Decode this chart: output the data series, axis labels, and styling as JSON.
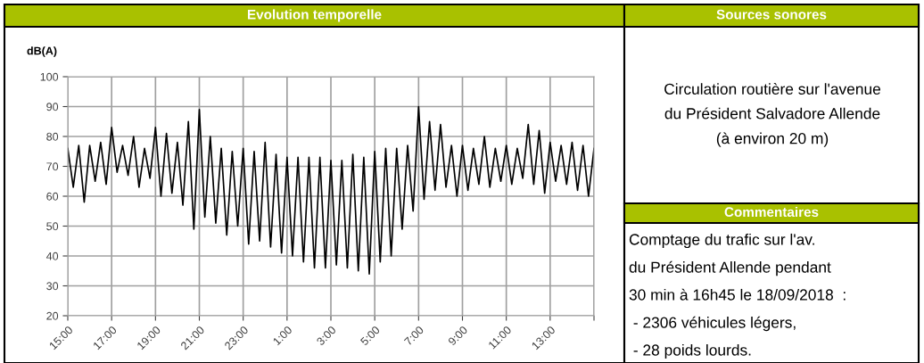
{
  "chart_data": [
    {
      "type": "line",
      "title": "Evolution temporelle",
      "ylabel": "dB(A)",
      "x": [
        "2018-09-18T15:00",
        "2018-09-18T15:15",
        "2018-09-18T15:30",
        "2018-09-18T15:45",
        "2018-09-18T16:00",
        "2018-09-18T16:15",
        "2018-09-18T16:30",
        "2018-09-18T16:45",
        "2018-09-18T17:00",
        "2018-09-18T17:15",
        "2018-09-18T17:30",
        "2018-09-18T17:45",
        "2018-09-18T18:00",
        "2018-09-18T18:15",
        "2018-09-18T18:30",
        "2018-09-18T18:45",
        "2018-09-18T19:00",
        "2018-09-18T19:15",
        "2018-09-18T19:30",
        "2018-09-18T19:45",
        "2018-09-18T20:00",
        "2018-09-18T20:15",
        "2018-09-18T20:30",
        "2018-09-18T20:45",
        "2018-09-18T21:00",
        "2018-09-18T21:15",
        "2018-09-18T21:30",
        "2018-09-18T21:45",
        "2018-09-18T22:00",
        "2018-09-18T22:15",
        "2018-09-18T22:30",
        "2018-09-18T22:45",
        "2018-09-18T23:00",
        "2018-09-18T23:15",
        "2018-09-18T23:30",
        "2018-09-18T23:45",
        "2018-09-19T00:00",
        "2018-09-19T00:15",
        "2018-09-19T00:30",
        "2018-09-19T00:45",
        "2018-09-19T01:00",
        "2018-09-19T01:15",
        "2018-09-19T01:30",
        "2018-09-19T01:45",
        "2018-09-19T02:00",
        "2018-09-19T02:15",
        "2018-09-19T02:30",
        "2018-09-19T02:45",
        "2018-09-19T03:00",
        "2018-09-19T03:15",
        "2018-09-19T03:30",
        "2018-09-19T03:45",
        "2018-09-19T04:00",
        "2018-09-19T04:15",
        "2018-09-19T04:30",
        "2018-09-19T04:45",
        "2018-09-19T05:00",
        "2018-09-19T05:15",
        "2018-09-19T05:30",
        "2018-09-19T05:45",
        "2018-09-19T06:00",
        "2018-09-19T06:15",
        "2018-09-19T06:30",
        "2018-09-19T06:45",
        "2018-09-19T07:00",
        "2018-09-19T07:15",
        "2018-09-19T07:30",
        "2018-09-19T07:45",
        "2018-09-19T08:00",
        "2018-09-19T08:15",
        "2018-09-19T08:30",
        "2018-09-19T08:45",
        "2018-09-19T09:00",
        "2018-09-19T09:15",
        "2018-09-19T09:30",
        "2018-09-19T09:45",
        "2018-09-19T10:00",
        "2018-09-19T10:15",
        "2018-09-19T10:30",
        "2018-09-19T10:45",
        "2018-09-19T11:00",
        "2018-09-19T11:15",
        "2018-09-19T11:30",
        "2018-09-19T11:45",
        "2018-09-19T12:00",
        "2018-09-19T12:15",
        "2018-09-19T12:30",
        "2018-09-19T12:45",
        "2018-09-19T13:00",
        "2018-09-19T13:15",
        "2018-09-19T13:30",
        "2018-09-19T13:45",
        "2018-09-19T14:00",
        "2018-09-19T14:15",
        "2018-09-19T14:30",
        "2018-09-19T14:45",
        "2018-09-19T15:00"
      ],
      "series": [
        {
          "color": "#000000",
          "values": [
            76,
            63,
            77,
            58,
            77,
            65,
            78,
            64,
            83,
            68,
            77,
            67,
            80,
            63,
            76,
            66,
            83,
            60,
            81,
            61,
            78,
            57,
            85,
            49,
            89,
            53,
            80,
            51,
            76,
            47,
            75,
            50,
            76,
            44,
            75,
            45,
            78,
            43,
            74,
            41,
            73,
            40,
            73,
            38,
            73,
            36,
            73,
            36,
            72,
            37,
            72,
            36,
            74,
            35,
            73,
            34,
            75,
            38,
            76,
            40,
            76,
            49,
            77,
            55,
            90,
            59,
            85,
            62,
            84,
            63,
            77,
            60,
            77,
            62,
            76,
            64,
            80,
            63,
            76,
            65,
            77,
            64,
            76,
            66,
            84,
            64,
            82,
            61,
            78,
            65,
            77,
            64,
            78,
            62,
            77,
            60,
            76
          ]
        }
      ],
      "xlim": [
        "2018-09-18T15:00",
        "2018-09-19T15:00"
      ],
      "xticks": [
        {
          "value": "2018-09-18T15:00",
          "label": "15:00"
        },
        {
          "value": "2018-09-18T17:00",
          "label": "17:00"
        },
        {
          "value": "2018-09-18T19:00",
          "label": "19:00"
        },
        {
          "value": "2018-09-18T21:00",
          "label": "21:00"
        },
        {
          "value": "2018-09-18T23:00",
          "label": "23:00"
        },
        {
          "value": "2018-09-19T01:00",
          "label": "1:00"
        },
        {
          "value": "2018-09-19T03:00",
          "label": "3:00"
        },
        {
          "value": "2018-09-19T05:00",
          "label": "5:00"
        },
        {
          "value": "2018-09-19T07:00",
          "label": "7:00"
        },
        {
          "value": "2018-09-19T09:00",
          "label": "9:00"
        },
        {
          "value": "2018-09-19T11:00",
          "label": "11:00"
        },
        {
          "value": "2018-09-19T13:00",
          "label": "13:00"
        },
        {
          "value": "2018-09-19T15:00",
          "label": null
        }
      ],
      "ylim": [
        20,
        100
      ],
      "yticks": [
        20,
        30,
        40,
        50,
        60,
        70,
        80,
        90,
        100
      ],
      "grid": true,
      "legend": false,
      "marker": "none",
      "line_style": "solid"
    },
    {
      "type": "other",
      "title": "Sources sonores",
      "annotations": [
        "Circulation routière sur l'avenue\ndu Président Salvadore Allende\n(à environ 20 m)"
      ]
    },
    {
      "type": "other",
      "title": "Commentaires",
      "annotations": [
        "Comptage du trafic sur l'av.",
        "du Président Allende pendant",
        "30 min à 16h45 le 18/09/2018  :",
        " - 2306 véhicules légers,",
        " - 28 poids lourds."
      ]
    }
  ]
}
